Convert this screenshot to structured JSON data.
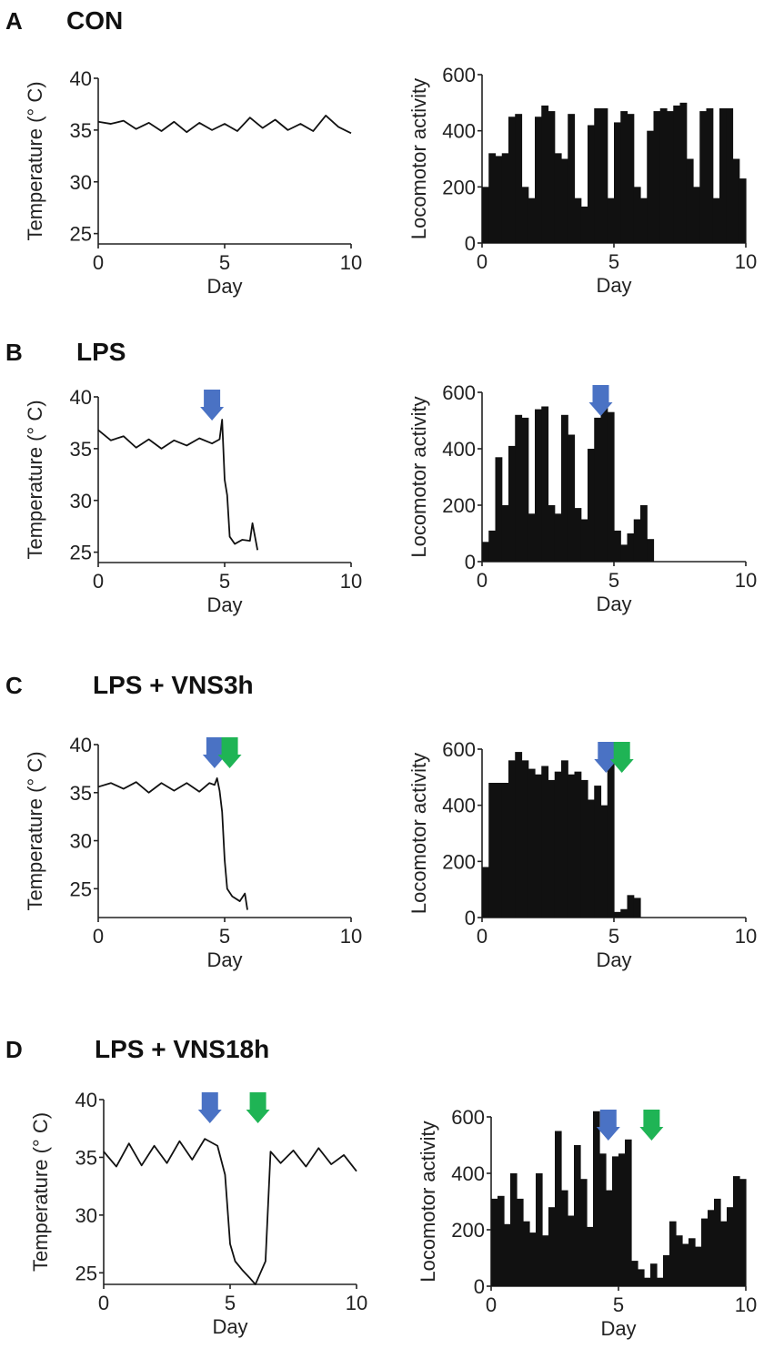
{
  "colors": {
    "ink": "#111111",
    "arrow_lps": "#4a72c4",
    "arrow_vns": "#1fb455"
  },
  "panels": [
    {
      "letter": "A",
      "title": "CON"
    },
    {
      "letter": "B",
      "title": "LPS"
    },
    {
      "letter": "C",
      "title": "LPS + VNS3h"
    },
    {
      "letter": "D",
      "title": "LPS + VNS18h"
    }
  ],
  "chart_data": [
    {
      "type": "line",
      "panel": "A",
      "xlabel": "Day",
      "ylabel": "Temperature (° C)",
      "xlim": [
        0,
        10
      ],
      "ylim": [
        24,
        40
      ],
      "xticks": [
        0,
        5,
        10
      ],
      "yticks": [
        25,
        30,
        35,
        40
      ],
      "x": [
        0,
        0.5,
        1,
        1.5,
        2,
        2.5,
        3,
        3.5,
        4,
        4.5,
        5,
        5.5,
        6,
        6.5,
        7,
        7.5,
        8,
        8.5,
        9,
        9.5,
        10
      ],
      "y": [
        35.8,
        35.6,
        35.9,
        35.1,
        35.7,
        34.9,
        35.8,
        34.8,
        35.7,
        35.0,
        35.6,
        34.9,
        36.2,
        35.2,
        36.0,
        35.0,
        35.6,
        34.9,
        36.4,
        35.3,
        34.7
      ],
      "arrows": []
    },
    {
      "type": "bar",
      "panel": "A",
      "xlabel": "Day",
      "ylabel": "Locomotor activity",
      "xlim": [
        0,
        10
      ],
      "ylim": [
        0,
        600
      ],
      "xticks": [
        0,
        5,
        10
      ],
      "yticks": [
        0,
        200,
        400,
        600
      ],
      "x": [
        0,
        0.25,
        0.5,
        0.75,
        1,
        1.25,
        1.5,
        1.75,
        2,
        2.25,
        2.5,
        2.75,
        3,
        3.25,
        3.5,
        3.75,
        4,
        4.25,
        4.5,
        4.75,
        5,
        5.25,
        5.5,
        5.75,
        6,
        6.25,
        6.5,
        6.75,
        7,
        7.25,
        7.5,
        7.75,
        8,
        8.25,
        8.5,
        8.75,
        9,
        9.25,
        9.5,
        9.75
      ],
      "values": [
        200,
        320,
        310,
        320,
        450,
        460,
        200,
        160,
        450,
        490,
        470,
        320,
        300,
        460,
        160,
        130,
        420,
        480,
        480,
        160,
        430,
        470,
        460,
        200,
        160,
        400,
        470,
        480,
        470,
        490,
        500,
        300,
        200,
        470,
        480,
        160,
        480,
        480,
        300,
        230
      ],
      "arrows": []
    },
    {
      "type": "line",
      "panel": "B",
      "xlabel": "Day",
      "ylabel": "Temperature (° C)",
      "xlim": [
        0,
        10
      ],
      "ylim": [
        24,
        40
      ],
      "xticks": [
        0,
        5,
        10
      ],
      "yticks": [
        25,
        30,
        35,
        40
      ],
      "x": [
        0,
        0.5,
        1,
        1.5,
        2,
        2.5,
        3,
        3.5,
        4,
        4.5,
        4.8,
        4.9,
        5.0,
        5.1,
        5.2,
        5.4,
        5.7,
        6.0,
        6.1,
        6.2,
        6.3
      ],
      "y": [
        36.8,
        35.8,
        36.2,
        35.1,
        35.9,
        35.0,
        35.8,
        35.3,
        36.0,
        35.5,
        35.9,
        37.8,
        32.0,
        30.5,
        26.5,
        25.8,
        26.2,
        26.1,
        27.8,
        26.5,
        25.2
      ],
      "arrows": [
        {
          "x": 4.5,
          "color": "#4a72c4"
        }
      ]
    },
    {
      "type": "bar",
      "panel": "B",
      "xlabel": "Day",
      "ylabel": "Locomotor activity",
      "xlim": [
        0,
        10
      ],
      "ylim": [
        0,
        600
      ],
      "xticks": [
        0,
        5,
        10
      ],
      "yticks": [
        0,
        200,
        400,
        600
      ],
      "x": [
        0,
        0.25,
        0.5,
        0.75,
        1,
        1.25,
        1.5,
        1.75,
        2,
        2.25,
        2.5,
        2.75,
        3,
        3.25,
        3.5,
        3.75,
        4,
        4.25,
        4.5,
        4.75,
        5,
        5.25,
        5.5,
        5.75,
        6,
        6.25
      ],
      "values": [
        70,
        110,
        370,
        200,
        410,
        520,
        510,
        170,
        540,
        550,
        200,
        170,
        520,
        450,
        190,
        150,
        400,
        510,
        560,
        530,
        110,
        60,
        100,
        150,
        200,
        80
      ],
      "arrows": [
        {
          "x": 4.5,
          "color": "#4a72c4"
        }
      ]
    },
    {
      "type": "line",
      "panel": "C",
      "xlabel": "Day",
      "ylabel": "Temperature (° C)",
      "xlim": [
        0,
        10
      ],
      "ylim": [
        22,
        40
      ],
      "xticks": [
        0,
        5,
        10
      ],
      "yticks": [
        25,
        30,
        35,
        40
      ],
      "x": [
        0,
        0.5,
        1,
        1.5,
        2,
        2.5,
        3,
        3.5,
        4,
        4.4,
        4.6,
        4.7,
        4.8,
        4.9,
        5.0,
        5.1,
        5.3,
        5.6,
        5.8,
        5.9
      ],
      "y": [
        35.6,
        36.0,
        35.4,
        36.1,
        35.0,
        36.0,
        35.2,
        36.0,
        35.1,
        36.0,
        35.8,
        36.5,
        35.2,
        33.0,
        28.0,
        25.0,
        24.2,
        23.7,
        24.5,
        22.8
      ],
      "arrows": [
        {
          "x": 4.6,
          "color": "#4a72c4"
        },
        {
          "x": 5.2,
          "color": "#1fb455"
        }
      ]
    },
    {
      "type": "bar",
      "panel": "C",
      "xlabel": "Day",
      "ylabel": "Locomotor activity",
      "xlim": [
        0,
        10
      ],
      "ylim": [
        0,
        600
      ],
      "xticks": [
        0,
        5,
        10
      ],
      "yticks": [
        0,
        200,
        400,
        600
      ],
      "x": [
        0,
        0.25,
        0.5,
        0.75,
        1,
        1.25,
        1.5,
        1.75,
        2,
        2.25,
        2.5,
        2.75,
        3,
        3.25,
        3.5,
        3.75,
        4,
        4.25,
        4.5,
        4.75,
        5,
        5.25,
        5.5,
        5.75
      ],
      "values": [
        180,
        480,
        480,
        480,
        560,
        590,
        560,
        530,
        510,
        540,
        490,
        520,
        560,
        510,
        520,
        490,
        420,
        470,
        400,
        600,
        20,
        30,
        80,
        70
      ],
      "arrows": [
        {
          "x": 4.7,
          "color": "#4a72c4"
        },
        {
          "x": 5.3,
          "color": "#1fb455"
        }
      ]
    },
    {
      "type": "line",
      "panel": "D",
      "xlabel": "Day",
      "ylabel": "Temperature (° C)",
      "xlim": [
        0,
        10
      ],
      "ylim": [
        24,
        40
      ],
      "xticks": [
        0,
        5,
        10
      ],
      "yticks": [
        25,
        30,
        35,
        40
      ],
      "x": [
        0,
        0.5,
        1,
        1.5,
        2,
        2.5,
        3,
        3.5,
        4,
        4.5,
        4.8,
        5.0,
        5.2,
        5.5,
        5.8,
        6.0,
        6.2,
        6.4,
        6.6,
        7,
        7.5,
        8,
        8.5,
        9,
        9.5,
        10
      ],
      "y": [
        35.5,
        34.2,
        36.2,
        34.3,
        36.0,
        34.5,
        36.4,
        34.8,
        36.6,
        36.0,
        33.5,
        27.5,
        26.0,
        25.2,
        24.5,
        24.0,
        25.0,
        26.0,
        35.5,
        34.5,
        35.6,
        34.2,
        35.8,
        34.4,
        35.2,
        33.8
      ],
      "arrows": [
        {
          "x": 4.2,
          "color": "#4a72c4"
        },
        {
          "x": 6.1,
          "color": "#1fb455"
        }
      ]
    },
    {
      "type": "bar",
      "panel": "D",
      "xlabel": "Day",
      "ylabel": "Locomotor activity",
      "xlim": [
        0,
        10
      ],
      "ylim": [
        0,
        600
      ],
      "xticks": [
        0,
        5,
        10
      ],
      "yticks": [
        0,
        200,
        400,
        600
      ],
      "x": [
        0,
        0.25,
        0.5,
        0.75,
        1,
        1.25,
        1.5,
        1.75,
        2,
        2.25,
        2.5,
        2.75,
        3,
        3.25,
        3.5,
        3.75,
        4,
        4.25,
        4.5,
        4.75,
        5,
        5.25,
        5.5,
        5.75,
        6,
        6.25,
        6.5,
        6.75,
        7,
        7.25,
        7.5,
        7.75,
        8,
        8.25,
        8.5,
        8.75,
        9,
        9.25,
        9.5,
        9.75
      ],
      "values": [
        310,
        320,
        220,
        400,
        310,
        230,
        190,
        400,
        180,
        280,
        550,
        340,
        250,
        500,
        380,
        210,
        620,
        470,
        340,
        460,
        470,
        520,
        90,
        60,
        30,
        80,
        30,
        110,
        230,
        180,
        150,
        170,
        140,
        240,
        270,
        310,
        230,
        280,
        390,
        380
      ],
      "arrows": [
        {
          "x": 4.6,
          "color": "#4a72c4"
        },
        {
          "x": 6.3,
          "color": "#1fb455"
        }
      ]
    }
  ]
}
